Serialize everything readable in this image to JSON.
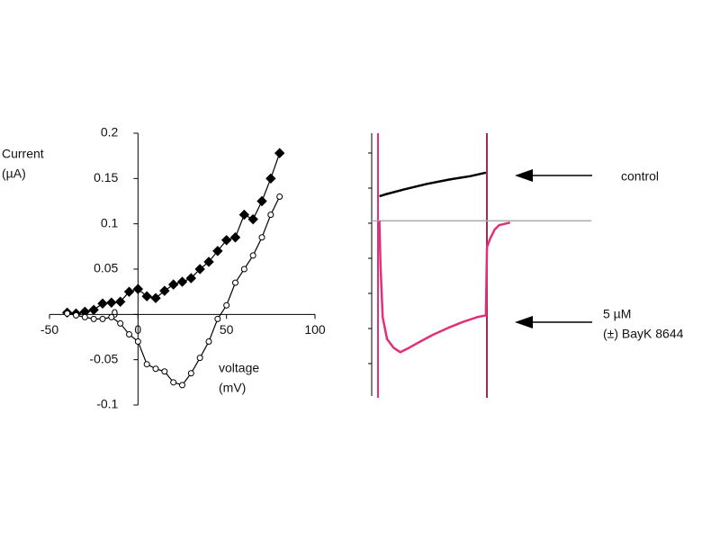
{
  "chart_data": [
    {
      "type": "line",
      "y_label": [
        "Current",
        "(µA)"
      ],
      "x_label": [
        "voltage",
        "(mV)"
      ],
      "x": [
        -40,
        -35,
        -30,
        -25,
        -20,
        -15,
        -10,
        -5,
        0,
        5,
        10,
        15,
        20,
        25,
        30,
        35,
        40,
        45,
        50,
        55,
        60,
        65,
        70,
        75,
        80
      ],
      "series": [
        {
          "marker": "diamond",
          "filled": true,
          "color": "#000000",
          "values": [
            0.002,
            0.001,
            0.003,
            0.005,
            0.012,
            0.013,
            0.014,
            0.025,
            0.028,
            0.02,
            0.018,
            0.026,
            0.033,
            0.036,
            0.04,
            0.05,
            0.058,
            0.07,
            0.082,
            0.085,
            0.11,
            0.105,
            0.125,
            0.15,
            0.178
          ]
        },
        {
          "marker": "circle",
          "filled": false,
          "color": "#000000",
          "values": [
            0.001,
            -0.001,
            -0.003,
            -0.005,
            -0.005,
            -0.003,
            -0.01,
            -0.022,
            -0.03,
            -0.055,
            -0.06,
            -0.063,
            -0.075,
            -0.078,
            -0.065,
            -0.048,
            -0.03,
            -0.005,
            0.01,
            0.035,
            0.05,
            0.065,
            0.085,
            0.11,
            0.13
          ]
        }
      ],
      "xlim": [
        -50,
        100
      ],
      "xticks": [
        -50,
        0,
        50,
        100
      ],
      "ylim": [
        -0.1,
        0.2
      ],
      "yticks": [
        -0.1,
        -0.05,
        0,
        0.05,
        0.1,
        0.15,
        0.2
      ]
    },
    {
      "type": "trace",
      "xlim": [
        0,
        100
      ],
      "ylim": [
        -2,
        1
      ],
      "series": [
        {
          "name": "control",
          "color": "#000000",
          "x": [
            3.5,
            6,
            15,
            25,
            35,
            45,
            52
          ],
          "values": [
            0.28,
            0.3,
            0.36,
            0.42,
            0.47,
            0.51,
            0.55
          ]
        },
        {
          "name": [
            "5 µM",
            "(±) BayK 8644"
          ],
          "color": "#e0307a",
          "x": [
            3.5,
            4,
            5,
            7,
            10,
            13,
            17,
            22,
            28,
            35,
            42,
            48,
            52,
            52.5,
            54,
            56,
            58,
            63
          ],
          "values": [
            0,
            -0.5,
            -1.1,
            -1.35,
            -1.45,
            -1.5,
            -1.45,
            -1.38,
            -1.3,
            -1.22,
            -1.15,
            -1.1,
            -1.08,
            -0.3,
            -0.2,
            -0.1,
            -0.05,
            -0.02
          ]
        }
      ]
    }
  ]
}
